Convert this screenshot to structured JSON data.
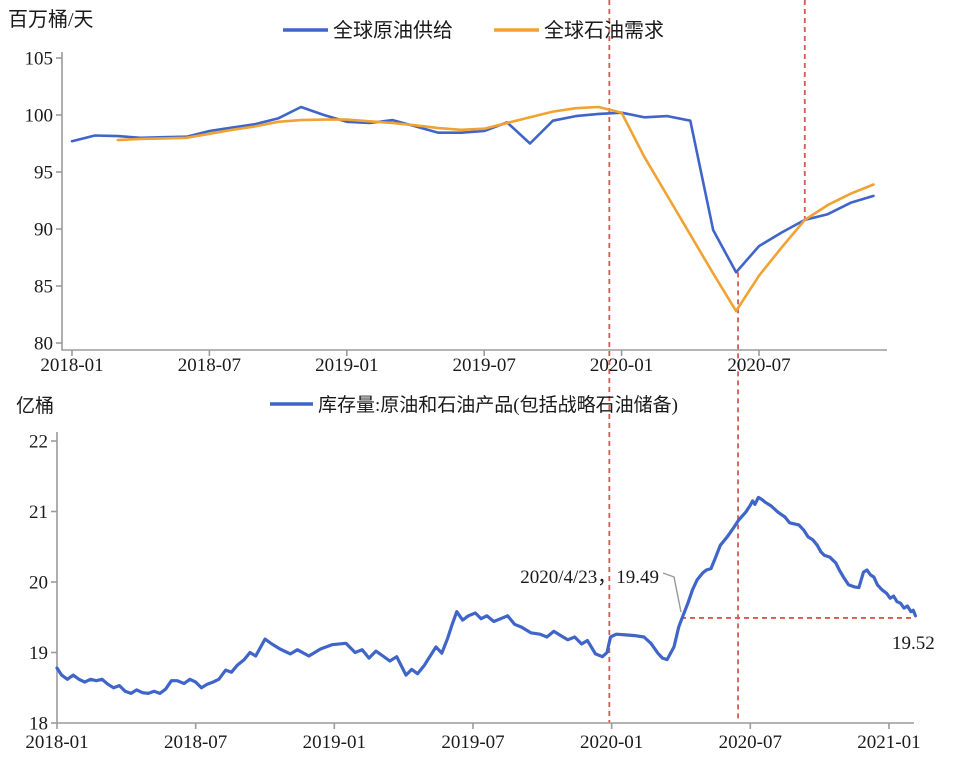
{
  "colors": {
    "supply_blue": "#3f65c8",
    "demand_orange": "#f0a232",
    "inventory_blue": "#3f65c8",
    "dashed_red": "#dd5555",
    "axis_gray": "#9b9b9b",
    "text": "#1a1a1a",
    "connector_gray": "#999999"
  },
  "chart_data": [
    {
      "type": "line",
      "unit": "百万桶/天",
      "ylim": [
        80,
        105
      ],
      "yticks": [
        105,
        100,
        95,
        90,
        85,
        80
      ],
      "xticks": [
        "2018-01",
        "2018-07",
        "2019-01",
        "2019-07",
        "2020-01",
        "2020-07"
      ],
      "xtick_months": [
        0,
        6,
        12,
        18,
        24,
        30
      ],
      "grid": false,
      "legend_position": "top-center",
      "series": [
        {
          "name": "全球原油供给",
          "color": "#3f65c8",
          "start_month": 0,
          "values": [
            97.7,
            98.2,
            98.15,
            98.0,
            98.05,
            98.1,
            98.6,
            98.9,
            99.2,
            99.7,
            100.7,
            100.0,
            99.4,
            99.3,
            99.55,
            99.0,
            98.45,
            98.45,
            98.6,
            99.35,
            97.5,
            99.5,
            99.9,
            100.1,
            100.2,
            99.8,
            99.9,
            99.5,
            89.9,
            86.2,
            88.5,
            89.7,
            90.8,
            91.3,
            92.3,
            92.9
          ]
        },
        {
          "name": "全球石油需求",
          "color": "#f0a232",
          "start_month": 2,
          "values": [
            97.8,
            97.9,
            97.95,
            98.0,
            98.35,
            98.7,
            99.0,
            99.4,
            99.55,
            99.6,
            99.6,
            99.45,
            99.3,
            99.1,
            98.85,
            98.7,
            98.8,
            99.3,
            99.8,
            100.3,
            100.6,
            100.7,
            100.2,
            96.3,
            92.9,
            89.5,
            86.1,
            82.8,
            85.9,
            88.4,
            90.8,
            92.1,
            93.1,
            93.9
          ]
        }
      ]
    },
    {
      "type": "line",
      "unit": "亿桶",
      "ylim": [
        18,
        22
      ],
      "yticks": [
        22,
        21,
        20,
        19,
        18
      ],
      "xticks": [
        "2018-01",
        "2018-07",
        "2019-01",
        "2019-07",
        "2020-01",
        "2020-07",
        "2021-01"
      ],
      "xtick_months": [
        0,
        6,
        12,
        18,
        24,
        30,
        36
      ],
      "grid": false,
      "legend_position": "top-center",
      "series": [
        {
          "name": "库存量:原油和石油产品(包括战略石油储备)",
          "color": "#3f65c8",
          "points": [
            [
              0,
              18.78
            ],
            [
              0.2,
              18.68
            ],
            [
              0.45,
              18.62
            ],
            [
              0.7,
              18.68
            ],
            [
              0.95,
              18.62
            ],
            [
              1.2,
              18.58
            ],
            [
              1.45,
              18.62
            ],
            [
              1.7,
              18.6
            ],
            [
              1.95,
              18.62
            ],
            [
              2.2,
              18.55
            ],
            [
              2.45,
              18.5
            ],
            [
              2.7,
              18.53
            ],
            [
              2.95,
              18.45
            ],
            [
              3.2,
              18.42
            ],
            [
              3.45,
              18.47
            ],
            [
              3.7,
              18.43
            ],
            [
              3.95,
              18.42
            ],
            [
              4.2,
              18.45
            ],
            [
              4.45,
              18.42
            ],
            [
              4.7,
              18.48
            ],
            [
              4.95,
              18.6
            ],
            [
              5.2,
              18.6
            ],
            [
              5.5,
              18.56
            ],
            [
              5.75,
              18.62
            ],
            [
              6,
              18.58
            ],
            [
              6.25,
              18.5
            ],
            [
              6.5,
              18.55
            ],
            [
              6.75,
              18.58
            ],
            [
              7,
              18.62
            ],
            [
              7.3,
              18.75
            ],
            [
              7.55,
              18.72
            ],
            [
              7.8,
              18.82
            ],
            [
              8.1,
              18.9
            ],
            [
              8.35,
              19
            ],
            [
              8.6,
              18.95
            ],
            [
              9,
              19.19
            ],
            [
              9.3,
              19.12
            ],
            [
              9.65,
              19.05
            ],
            [
              10.1,
              18.98
            ],
            [
              10.4,
              19.04
            ],
            [
              10.9,
              18.95
            ],
            [
              11.4,
              19.05
            ],
            [
              11.9,
              19.11
            ],
            [
              12.5,
              19.13
            ],
            [
              12.9,
              19
            ],
            [
              13.2,
              19.04
            ],
            [
              13.5,
              18.92
            ],
            [
              13.8,
              19.02
            ],
            [
              14.1,
              18.95
            ],
            [
              14.4,
              18.88
            ],
            [
              14.7,
              18.94
            ],
            [
              15.1,
              18.68
            ],
            [
              15.35,
              18.76
            ],
            [
              15.6,
              18.7
            ],
            [
              15.9,
              18.82
            ],
            [
              16.15,
              18.95
            ],
            [
              16.4,
              19.08
            ],
            [
              16.65,
              18.99
            ],
            [
              16.9,
              19.2
            ],
            [
              17.1,
              19.4
            ],
            [
              17.3,
              19.58
            ],
            [
              17.55,
              19.46
            ],
            [
              17.8,
              19.52
            ],
            [
              18.1,
              19.56
            ],
            [
              18.35,
              19.48
            ],
            [
              18.6,
              19.52
            ],
            [
              18.9,
              19.44
            ],
            [
              19.2,
              19.48
            ],
            [
              19.5,
              19.52
            ],
            [
              19.8,
              19.4
            ],
            [
              20.1,
              19.36
            ],
            [
              20.5,
              19.28
            ],
            [
              20.9,
              19.26
            ],
            [
              21.2,
              19.22
            ],
            [
              21.5,
              19.3
            ],
            [
              21.8,
              19.24
            ],
            [
              22.1,
              19.18
            ],
            [
              22.4,
              19.22
            ],
            [
              22.7,
              19.12
            ],
            [
              22.95,
              19.17
            ],
            [
              23.3,
              18.98
            ],
            [
              23.6,
              18.94
            ],
            [
              23.8,
              19
            ],
            [
              23.95,
              19.22
            ],
            [
              24.2,
              19.26
            ],
            [
              24.6,
              19.25
            ],
            [
              25,
              19.24
            ],
            [
              25.4,
              19.22
            ],
            [
              25.7,
              19.13
            ],
            [
              26,
              18.99
            ],
            [
              26.2,
              18.92
            ],
            [
              26.4,
              18.9
            ],
            [
              26.7,
              19.08
            ],
            [
              26.9,
              19.36
            ],
            [
              27.05,
              19.49
            ],
            [
              27.3,
              19.7
            ],
            [
              27.5,
              19.89
            ],
            [
              27.7,
              20.03
            ],
            [
              27.95,
              20.13
            ],
            [
              28.1,
              20.17
            ],
            [
              28.3,
              20.19
            ],
            [
              28.5,
              20.35
            ],
            [
              28.7,
              20.52
            ],
            [
              29,
              20.64
            ],
            [
              29.3,
              20.78
            ],
            [
              29.5,
              20.88
            ],
            [
              29.8,
              20.99
            ],
            [
              30,
              21.09
            ],
            [
              30.1,
              21.15
            ],
            [
              30.2,
              21.1
            ],
            [
              30.35,
              21.2
            ],
            [
              30.5,
              21.17
            ],
            [
              30.65,
              21.13
            ],
            [
              30.9,
              21.08
            ],
            [
              31.2,
              20.99
            ],
            [
              31.5,
              20.92
            ],
            [
              31.7,
              20.84
            ],
            [
              32.1,
              20.81
            ],
            [
              32.3,
              20.74
            ],
            [
              32.5,
              20.64
            ],
            [
              32.7,
              20.6
            ],
            [
              32.9,
              20.52
            ],
            [
              33.05,
              20.43
            ],
            [
              33.2,
              20.38
            ],
            [
              33.45,
              20.35
            ],
            [
              33.7,
              20.27
            ],
            [
              33.85,
              20.17
            ],
            [
              34.05,
              20.06
            ],
            [
              34.25,
              19.96
            ],
            [
              34.5,
              19.93
            ],
            [
              34.7,
              19.92
            ],
            [
              34.9,
              20.14
            ],
            [
              35.05,
              20.17
            ],
            [
              35.2,
              20.1
            ],
            [
              35.35,
              20.07
            ],
            [
              35.5,
              19.96
            ],
            [
              35.7,
              19.89
            ],
            [
              35.9,
              19.84
            ],
            [
              36.05,
              19.77
            ],
            [
              36.2,
              19.8
            ],
            [
              36.35,
              19.72
            ],
            [
              36.5,
              19.7
            ],
            [
              36.65,
              19.63
            ],
            [
              36.8,
              19.66
            ],
            [
              36.95,
              19.58
            ],
            [
              37.05,
              19.6
            ],
            [
              37.15,
              19.52
            ]
          ]
        }
      ],
      "annotations": [
        {
          "text": "2020/4/23，19.49",
          "point_month": 27.05,
          "value": 19.49
        },
        {
          "text": "19.52",
          "value": 19.52
        }
      ],
      "hline": {
        "value": 19.49,
        "from_month": 27.0,
        "to_month": 37.1
      }
    }
  ],
  "markers": {
    "color": "#dd5555",
    "vlines": [
      {
        "id": "covid-start",
        "bottom_month": 23.9,
        "extent": "full-height"
      },
      {
        "id": "trough-date",
        "bottom_month": 29.47,
        "extent": "from-supply-trough",
        "top_value": 86.2
      },
      {
        "id": "crossover-date",
        "top_month": 32,
        "extent": "top-to-crossover",
        "to_value": 90.8
      }
    ]
  }
}
